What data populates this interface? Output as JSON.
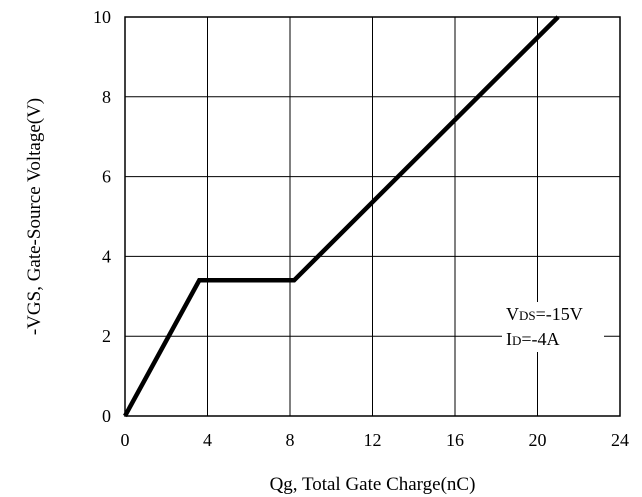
{
  "chart_data": {
    "type": "line",
    "xlabel": "Qg, Total Gate Charge(nC)",
    "ylabel": "-VGS, Gate-Source Voltage(V)",
    "xlim": [
      0,
      24
    ],
    "ylim": [
      0,
      10
    ],
    "xticks": [
      0,
      4,
      8,
      12,
      16,
      20,
      24
    ],
    "yticks": [
      0,
      2,
      4,
      6,
      8,
      10
    ],
    "grid": true,
    "series": [
      {
        "x": [
          0,
          3.6,
          8.2,
          21.0
        ],
        "y": [
          0,
          3.4,
          3.4,
          10.0
        ]
      }
    ],
    "annotations": [
      {
        "main": "V",
        "sub": "DS",
        "rest": "=-15V"
      },
      {
        "main": "I",
        "sub": "D",
        "rest": "=-4A"
      }
    ]
  },
  "colors": {
    "line": "#000000",
    "grid": "#000000",
    "background": "#ffffff"
  }
}
